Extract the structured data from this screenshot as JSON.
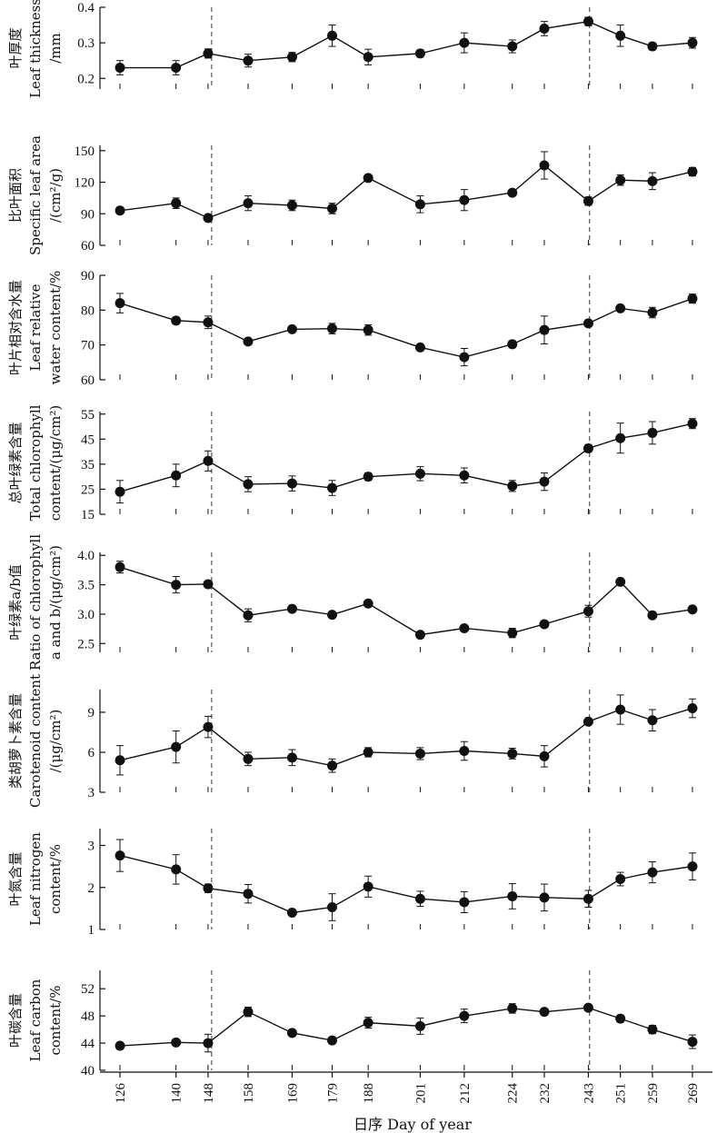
{
  "chart_data": {
    "type": "line",
    "x_title": "日序 Day of year",
    "x_ticks": [
      126,
      140,
      148,
      158,
      169,
      179,
      188,
      201,
      212,
      224,
      232,
      243,
      251,
      259,
      269
    ],
    "x_range": [
      121,
      274
    ],
    "dashed_lines_x": [
      148.9,
      243.3
    ],
    "panels": [
      {
        "ylabel": [
          "叶厚度",
          "Leaf thickness",
          "/mm"
        ],
        "ylim": [
          0.17,
          0.4
        ],
        "yticks": [
          0.2,
          0.3,
          0.4
        ],
        "decimals": 1,
        "values": [
          0.23,
          0.23,
          0.27,
          0.25,
          0.26,
          0.32,
          0.26,
          0.27,
          0.3,
          0.29,
          0.34,
          0.36,
          0.32,
          0.29,
          0.3
        ],
        "errors": [
          0.02,
          0.02,
          0.013,
          0.018,
          0.013,
          0.03,
          0.022,
          0.01,
          0.028,
          0.018,
          0.02,
          0.012,
          0.03,
          0.01,
          0.015
        ]
      },
      {
        "ylabel": [
          "比叶面积",
          "Specific leaf area",
          "/(cm²/g)"
        ],
        "ylim": [
          60,
          155
        ],
        "yticks": [
          60,
          90,
          120,
          150
        ],
        "decimals": 0,
        "values": [
          93,
          100,
          86,
          100,
          98,
          95,
          124,
          99,
          103,
          110,
          136,
          102,
          122,
          121,
          130
        ],
        "errors": [
          1.5,
          5,
          2,
          7,
          5,
          5,
          2,
          8,
          10,
          2,
          13,
          4,
          5,
          8,
          4
        ]
      },
      {
        "ylabel": [
          "叶片相对含水量",
          "Leaf relative",
          "water content/%"
        ],
        "ylim": [
          60,
          90
        ],
        "yticks": [
          60,
          70,
          80,
          90
        ],
        "decimals": 0,
        "values": [
          82,
          77,
          76.5,
          71,
          74.5,
          74.7,
          74.3,
          69.3,
          66.5,
          70.2,
          74.3,
          76.2,
          80.5,
          79.3,
          83.3
        ],
        "errors": [
          2.8,
          1,
          1.8,
          0.8,
          0.8,
          1.5,
          1.5,
          0.7,
          2.5,
          1,
          4,
          0.7,
          0.8,
          1.5,
          1.3
        ]
      },
      {
        "ylabel": [
          "总叶绿素含量",
          "Total chlorophyll",
          "content/(μg/cm²)"
        ],
        "ylim": [
          15,
          56
        ],
        "yticks": [
          15,
          25,
          35,
          45,
          55
        ],
        "decimals": 0,
        "values": [
          24,
          30.5,
          36.3,
          27,
          27.3,
          25.5,
          30,
          31.2,
          30.5,
          26.3,
          28,
          41.3,
          45.4,
          47.5,
          51.2
        ],
        "errors": [
          4.5,
          4.5,
          4,
          3,
          3,
          3,
          1.5,
          2.8,
          3,
          2.2,
          3.5,
          1.5,
          6,
          4.5,
          2
        ]
      },
      {
        "ylabel": [
          "叶绿素a/b值",
          "Ratio of chlorophyll",
          "a and b/(μg/cm²)"
        ],
        "ylim": [
          2.35,
          4.05
        ],
        "yticks": [
          2.5,
          3.0,
          3.5,
          4.0
        ],
        "decimals": 1,
        "values": [
          3.8,
          3.5,
          3.51,
          2.98,
          3.09,
          2.99,
          3.18,
          2.65,
          2.76,
          2.68,
          2.83,
          3.05,
          3.55,
          2.98,
          3.08
        ],
        "errors": [
          0.1,
          0.14,
          0.05,
          0.11,
          0.03,
          0.04,
          0.05,
          0.04,
          0.04,
          0.08,
          0.04,
          0.1,
          0.05,
          0.05,
          0.05
        ]
      },
      {
        "ylabel": [
          "类胡萝卜素含量",
          "Carotenoid content",
          "/(μg/cm²)"
        ],
        "ylim": [
          3,
          10.7
        ],
        "yticks": [
          3,
          6,
          9
        ],
        "decimals": 0,
        "values": [
          5.4,
          6.4,
          7.9,
          5.5,
          5.6,
          5,
          6,
          5.9,
          6.1,
          5.9,
          5.7,
          8.3,
          9.2,
          8.4,
          9.3
        ],
        "errors": [
          1.1,
          1.2,
          0.8,
          0.5,
          0.6,
          0.5,
          0.35,
          0.45,
          0.7,
          0.4,
          0.8,
          0.2,
          1.1,
          0.8,
          0.7
        ]
      },
      {
        "ylabel": [
          "叶氮含量",
          "Leaf nitrogen",
          "content/%"
        ],
        "ylim": [
          1,
          3.4
        ],
        "yticks": [
          1,
          2,
          3
        ],
        "decimals": 0,
        "values": [
          2.76,
          2.43,
          1.98,
          1.85,
          1.4,
          1.53,
          2.02,
          1.73,
          1.65,
          1.79,
          1.76,
          1.73,
          2.2,
          2.36,
          2.5
        ],
        "errors": [
          0.38,
          0.35,
          0.1,
          0.22,
          0.05,
          0.32,
          0.25,
          0.18,
          0.25,
          0.3,
          0.32,
          0.2,
          0.16,
          0.25,
          0.32
        ]
      },
      {
        "ylabel": [
          "叶碳含量",
          "Leaf carbon",
          "content/%"
        ],
        "ylim": [
          40,
          54.7
        ],
        "yticks": [
          40,
          44,
          48,
          52
        ],
        "decimals": 0,
        "values": [
          43.6,
          44.1,
          44,
          48.6,
          45.5,
          44.4,
          47,
          46.5,
          48,
          49.1,
          48.6,
          49.2,
          47.6,
          46,
          44.2
        ],
        "errors": [
          0.2,
          0.3,
          1.3,
          0.7,
          0.3,
          0.3,
          0.8,
          1.2,
          1,
          0.7,
          0.3,
          0.3,
          0.5,
          0.6,
          1
        ]
      }
    ]
  }
}
